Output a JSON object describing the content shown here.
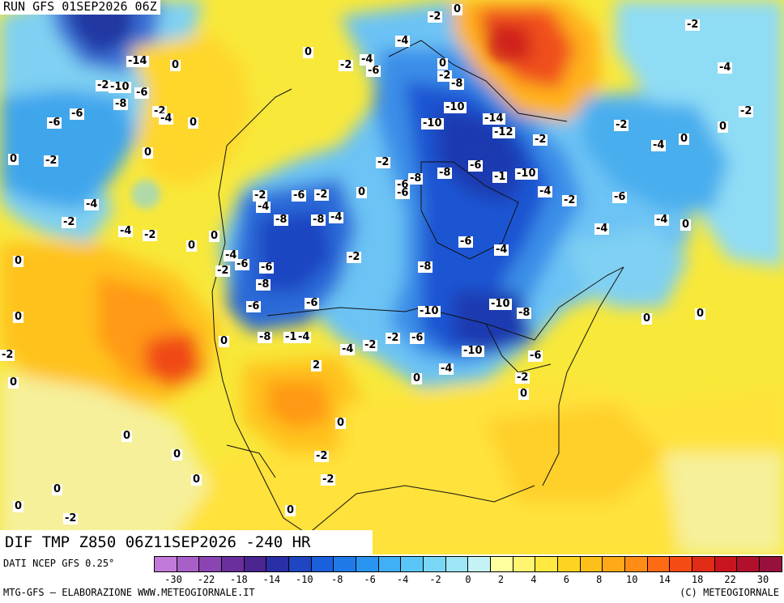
{
  "header": {
    "run": "RUN GFS 01SEP2026 06Z",
    "product": "DIF TMP Z850 06Z11SEP2026 -240 HR"
  },
  "footer": {
    "source": "DATI NCEP GFS 0.25°",
    "credit_left": "MTG-GFS — ELABORAZIONE WWW.METEOGIORNALE.IT",
    "credit_right": "(C) METEOGIORNALE"
  },
  "legend": {
    "colors": [
      "#c27ad9",
      "#a95fc8",
      "#8a45b3",
      "#6a2f9c",
      "#4a2590",
      "#2a2fa5",
      "#1f45c2",
      "#1a5fdc",
      "#1f7ae8",
      "#2a95f0",
      "#3fb0f5",
      "#5ac6f7",
      "#7ad6f5",
      "#9ee5f5",
      "#c4f2f5",
      "#ffffa0",
      "#fff570",
      "#ffe840",
      "#ffd420",
      "#ffbf1a",
      "#ffa818",
      "#ff8c16",
      "#ff6a14",
      "#f54a14",
      "#e02c14",
      "#c8141e",
      "#b0102c",
      "#98103c"
    ],
    "ticks": [
      "-30",
      "-22",
      "-18",
      "-14",
      "-10",
      "-8",
      "-6",
      "-4",
      "-2",
      "0",
      "2",
      "4",
      "6",
      "8",
      "10",
      "14",
      "18",
      "22",
      "30"
    ]
  },
  "contour_labels": [
    "-2",
    "0",
    "-2",
    "-4",
    "-14",
    "0",
    "0",
    "-2",
    "-4",
    "-6",
    "0",
    "-4",
    "-2",
    "-2",
    "-10",
    "-6",
    "-8",
    "-8",
    "-2",
    "-2",
    "-6",
    "-10",
    "-14",
    "-6",
    "-4",
    "0",
    "-10",
    "-2",
    "-12",
    "-2",
    "0",
    "-4",
    "0",
    "-2",
    "-2",
    "0",
    "0",
    "-6",
    "-8",
    "-8",
    "-6",
    "-1",
    "-10",
    "-6",
    "-4",
    "-6",
    "-2",
    "-6",
    "-2",
    "-4",
    "-2",
    "-8",
    "-8",
    "-4",
    "-4",
    "-4",
    "0",
    "-4",
    "0",
    "0",
    "-6",
    "0",
    "-4",
    "-2",
    "-2",
    "-4",
    "-6",
    "-4",
    "-2",
    "-6",
    "-8",
    "-2",
    "0",
    "-8",
    "-6",
    "-10",
    "-10",
    "-8",
    "-6",
    "0",
    "-8",
    "-1",
    "-4",
    "0",
    "-4",
    "-2",
    "-2",
    "-6",
    "-10",
    "-6",
    "-2",
    "0",
    "-4",
    "0",
    "2",
    "-2",
    "0",
    "0",
    "0",
    "-2",
    "0",
    "-2",
    "0",
    "0",
    "0",
    "0",
    "0",
    "0",
    "-2",
    "0"
  ]
}
